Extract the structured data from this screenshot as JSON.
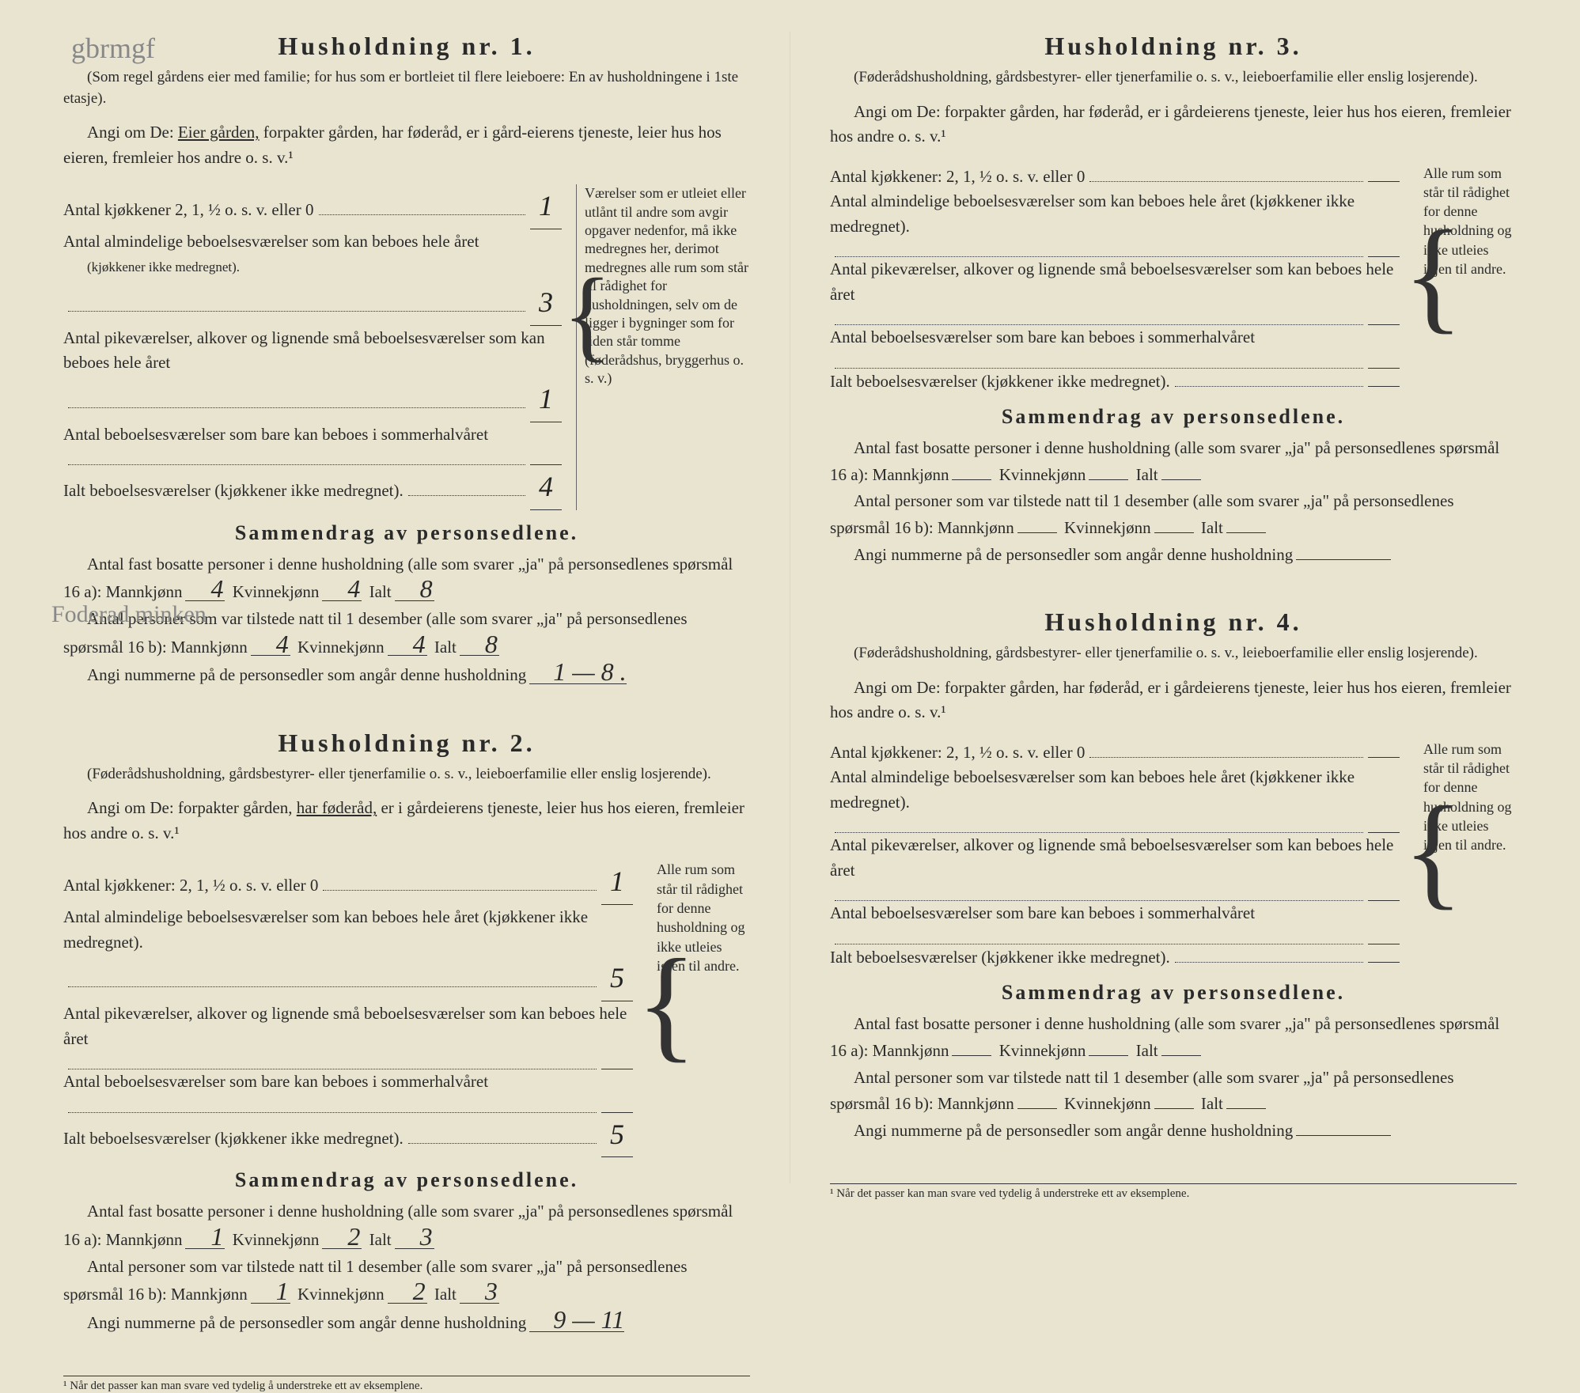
{
  "handwriting": {
    "top": "gbrmgf",
    "mid": "Foderad\nminken"
  },
  "footnote": "¹  Når det passer kan man svare ved tydelig å understreke ett av eksemplene.",
  "households": [
    {
      "title": "Husholdning nr. 1.",
      "subtitle": "(Som regel gårdens eier med familie; for hus som er bortleiet til flere leieboere: En av husholdningene i 1ste etasje).",
      "angi_pre": "Angi om De:  ",
      "angi_underlined": "Eier gården,",
      "angi_rest": " forpakter gården, har føderåd, er i gård-eierens tjeneste, leier hus hos eieren, fremleier hos andre o. s. v.¹",
      "f_kjokken_label": "Antal kjøkkener 2, 1, ½ o. s. v. eller 0",
      "f_kjokken_val": "1",
      "f_alm_label": "Antal almindelige beboelsesværelser som kan beboes hele året",
      "f_alm_sub": "(kjøkkener ikke medregnet).",
      "f_alm_val": "3",
      "f_pike_label": "Antal pikeværelser, alkover og lignende små beboelsesværelser som kan beboes hele året",
      "f_pike_val": "1",
      "f_sommer_label": "Antal beboelsesværelser som bare kan beboes i sommerhalvåret",
      "f_sommer_val": "",
      "f_ialt_label": "Ialt beboelsesværelser (kjøkkener ikke medregnet).",
      "f_ialt_val": "4",
      "note": "Værelser som er utleiet eller utlånt til andre som avgir opgaver nedenfor, må ikke medregnes her, derimot medregnes alle rum som står til rådighet for husholdningen, selv om de ligger i bygninger som for tiden står tomme (føderådshus, bryggerhus o. s. v.)",
      "sammen_title": "Sammendrag av personsedlene.",
      "s16a_text": "Antal fast bosatte personer i denne husholdning (alle som svarer „ja\" på personsedlenes spørsmål 16 a):",
      "s16a_m": "4",
      "s16a_k": "4",
      "s16a_i": "8",
      "s16b_text": "Antal personer som var tilstede natt til 1 desember (alle som svarer „ja\" på personsedlenes spørsmål 16 b):",
      "s16b_m": "4",
      "s16b_k": "4",
      "s16b_i": "8",
      "nummer_label": "Angi nummerne på de personsedler som angår denne husholdning",
      "nummer_val": "1 — 8 ."
    },
    {
      "title": "Husholdning nr. 2.",
      "subtitle": "(Føderådshusholdning, gårdsbestyrer- eller tjenerfamilie o. s. v., leieboerfamilie eller enslig losjerende).",
      "angi_pre": "Angi om De:  forpakter gården, ",
      "angi_underlined": "har føderåd,",
      "angi_rest": " er i gårdeierens tjeneste, leier hus hos eieren, fremleier hos andre o. s. v.¹",
      "f_kjokken_label": "Antal kjøkkener: 2, 1, ½ o. s. v. eller 0",
      "f_kjokken_val": "1",
      "f_alm_label": "Antal almindelige beboelsesværelser som kan beboes hele året (kjøkkener ikke medregnet).",
      "f_alm_val": "5",
      "f_pike_label": "Antal pikeværelser, alkover og lignende små beboelsesværelser som kan beboes hele året",
      "f_pike_val": "",
      "f_sommer_label": "Antal beboelsesværelser som bare kan beboes i sommerhalvåret",
      "f_sommer_val": "",
      "f_ialt_label": "Ialt beboelsesværelser (kjøkkener ikke medregnet).",
      "f_ialt_val": "5",
      "note": "Alle rum som står til rådighet for denne husholdning og ikke utleies igjen til andre.",
      "sammen_title": "Sammendrag av personsedlene.",
      "s16a_text": "Antal fast bosatte personer i denne husholdning (alle som svarer „ja\" på personsedlenes spørsmål 16 a):",
      "s16a_m": "1",
      "s16a_k": "2",
      "s16a_i": "3",
      "s16b_text": "Antal personer som var tilstede natt til 1 desember (alle som svarer „ja\" på personsedlenes spørsmål 16 b):",
      "s16b_m": "1",
      "s16b_k": "2",
      "s16b_i": "3",
      "nummer_label": "Angi nummerne på de personsedler som angår denne husholdning",
      "nummer_val": "9 — 11"
    },
    {
      "title": "Husholdning nr. 3.",
      "subtitle": "(Føderådshusholdning, gårdsbestyrer- eller tjenerfamilie o. s. v., leieboerfamilie eller enslig losjerende).",
      "angi_pre": "Angi om De:  forpakter gården, har føderåd, er i gårdeierens tjeneste, leier hus hos eieren, fremleier hos andre o. s. v.¹",
      "angi_underlined": "",
      "angi_rest": "",
      "f_kjokken_label": "Antal kjøkkener: 2, 1, ½ o. s. v. eller 0",
      "f_kjokken_val": "",
      "f_alm_label": "Antal almindelige beboelsesværelser som kan beboes hele året (kjøkkener ikke medregnet).",
      "f_alm_val": "",
      "f_pike_label": "Antal pikeværelser, alkover og lignende små beboelsesværelser som kan beboes hele året",
      "f_pike_val": "",
      "f_sommer_label": "Antal beboelsesværelser som bare kan beboes i sommerhalvåret",
      "f_sommer_val": "",
      "f_ialt_label": "Ialt beboelsesværelser (kjøkkener ikke medregnet).",
      "f_ialt_val": "",
      "note": "Alle rum som står til rådighet for denne husholdning og ikke utleies igjen til andre.",
      "sammen_title": "Sammendrag av personsedlene.",
      "s16a_text": "Antal fast bosatte personer i denne husholdning (alle som svarer „ja\" på personsedlenes spørsmål 16 a):",
      "s16a_m": "",
      "s16a_k": "",
      "s16a_i": "",
      "s16b_text": "Antal personer som var tilstede natt til 1 desember (alle som svarer „ja\" på personsedlenes spørsmål 16 b):",
      "s16b_m": "",
      "s16b_k": "",
      "s16b_i": "",
      "nummer_label": "Angi nummerne på de personsedler som angår denne husholdning",
      "nummer_val": ""
    },
    {
      "title": "Husholdning nr. 4.",
      "subtitle": "(Føderådshusholdning, gårdsbestyrer- eller tjenerfamilie o. s. v., leieboerfamilie eller enslig losjerende).",
      "angi_pre": "Angi om De:  forpakter gården, har føderåd, er i gårdeierens tjeneste, leier hus hos eieren, fremleier hos andre o. s. v.¹",
      "angi_underlined": "",
      "angi_rest": "",
      "f_kjokken_label": "Antal kjøkkener: 2, 1, ½ o. s. v. eller 0",
      "f_kjokken_val": "",
      "f_alm_label": "Antal almindelige beboelsesværelser som kan beboes hele året (kjøkkener ikke medregnet).",
      "f_alm_val": "",
      "f_pike_label": "Antal pikeværelser, alkover og lignende små beboelsesværelser som kan beboes hele året",
      "f_pike_val": "",
      "f_sommer_label": "Antal beboelsesværelser som bare kan beboes i sommerhalvåret",
      "f_sommer_val": "",
      "f_ialt_label": "Ialt beboelsesværelser (kjøkkener ikke medregnet).",
      "f_ialt_val": "",
      "note": "Alle rum som står til rådighet for denne husholdning og ikke utleies igjen til andre.",
      "sammen_title": "Sammendrag av personsedlene.",
      "s16a_text": "Antal fast bosatte personer i denne husholdning (alle som svarer „ja\" på personsedlenes spørsmål 16 a):",
      "s16a_m": "",
      "s16a_k": "",
      "s16a_i": "",
      "s16b_text": "Antal personer som var tilstede natt til 1 desember (alle som svarer „ja\" på personsedlenes spørsmål 16 b):",
      "s16b_m": "",
      "s16b_k": "",
      "s16b_i": "",
      "nummer_label": "Angi nummerne på de personsedler som angår denne husholdning",
      "nummer_val": ""
    }
  ],
  "labels": {
    "mann": "Mannkjønn",
    "kvinne": "Kvinnekjønn",
    "ialt": "Ialt"
  }
}
